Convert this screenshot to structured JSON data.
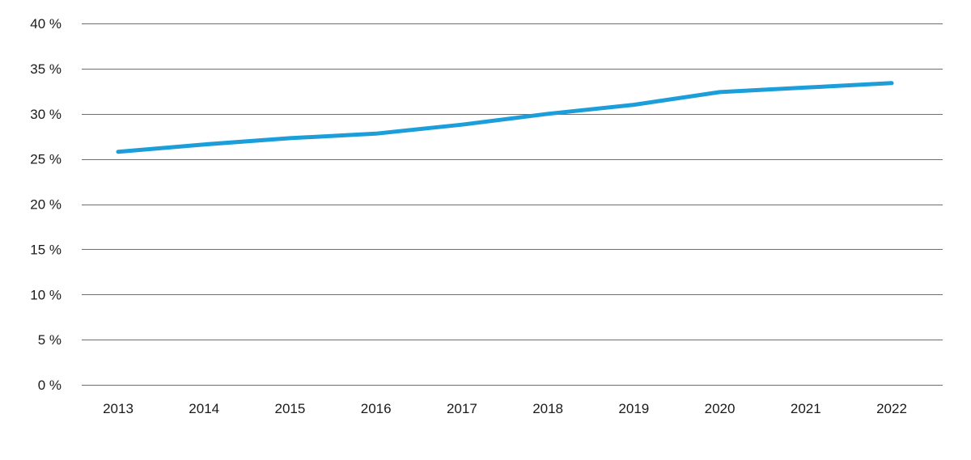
{
  "chart_data": {
    "type": "line",
    "title": "",
    "xlabel": "",
    "ylabel": "",
    "categories": [
      "2013",
      "2014",
      "2015",
      "2016",
      "2017",
      "2018",
      "2019",
      "2020",
      "2021",
      "2022"
    ],
    "series": [
      {
        "values": [
          25.8,
          26.6,
          27.3,
          27.8,
          28.8,
          30.0,
          31.0,
          32.4,
          32.9,
          33.4
        ],
        "color": "#1b9ed9"
      }
    ],
    "ylim": [
      0,
      40
    ],
    "y_ticks": [
      0,
      5,
      10,
      15,
      20,
      25,
      30,
      35,
      40
    ],
    "y_tick_labels": [
      "0 %",
      "5 %",
      "10 %",
      "15 %",
      "20 %",
      "25 %",
      "30 %",
      "35 %",
      "40 %"
    ],
    "grid": "horizontal",
    "legend": "none"
  }
}
